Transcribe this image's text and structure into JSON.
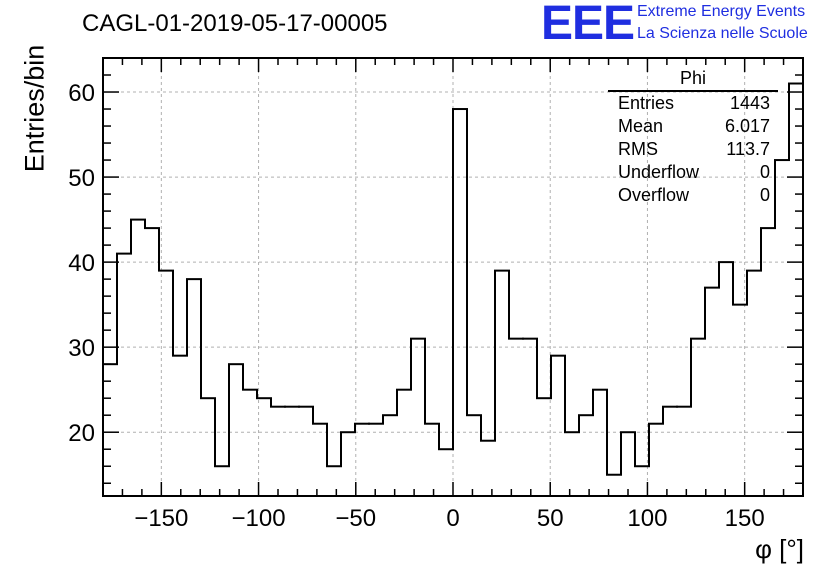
{
  "header": {
    "title": "CAGL-01-2019-05-17-00005",
    "logo_text": "EEE",
    "logo_line1": "Extreme Energy Events",
    "logo_line2": "La Scienza nelle Scuole"
  },
  "stats": {
    "name": "Phi",
    "rows": [
      {
        "label": "Entries",
        "value": "1443"
      },
      {
        "label": "Mean",
        "value": "6.017"
      },
      {
        "label": "RMS",
        "value": "113.7"
      },
      {
        "label": "Underflow",
        "value": "0"
      },
      {
        "label": "Overflow",
        "value": "0"
      }
    ]
  },
  "colors": {
    "logo": "#1f2ee0",
    "line": "#000000",
    "grid": "#b0b0b0"
  },
  "chart_data": {
    "type": "histogram",
    "xlabel": "φ [°]",
    "ylabel": "Entries/bin",
    "xlim": [
      -180,
      180
    ],
    "ylim": [
      12.5,
      64
    ],
    "xticks": [
      -150,
      -100,
      -50,
      0,
      50,
      100,
      150
    ],
    "yticks": [
      20,
      30,
      40,
      50,
      60
    ],
    "grid": true,
    "bin_width": 7.2,
    "bin_low_edges": [
      -180,
      -172.8,
      -165.6,
      -158.4,
      -151.2,
      -144,
      -136.8,
      -129.6,
      -122.4,
      -115.2,
      -108,
      -100.8,
      -93.6,
      -86.4,
      -79.2,
      -72,
      -64.8,
      -57.6,
      -50.4,
      -43.2,
      -36,
      -28.8,
      -21.6,
      -14.4,
      -7.2,
      0,
      7.2,
      14.4,
      21.6,
      28.8,
      36,
      43.2,
      50.4,
      57.6,
      64.8,
      72,
      79.2,
      86.4,
      93.6,
      100.8,
      108,
      115.2,
      122.4,
      129.6,
      136.8,
      144,
      151.2,
      158.4,
      165.6,
      172.8
    ],
    "values": [
      28,
      41,
      45,
      44,
      39,
      29,
      38,
      24,
      16,
      28,
      25,
      24,
      23,
      23,
      23,
      21,
      16,
      20,
      21,
      21,
      22,
      25,
      31,
      21,
      18,
      58,
      22,
      19,
      39,
      31,
      31,
      24,
      29,
      20,
      22,
      25,
      15,
      20,
      16,
      21,
      23,
      23,
      31,
      37,
      40,
      35,
      39,
      44,
      52,
      61
    ]
  }
}
